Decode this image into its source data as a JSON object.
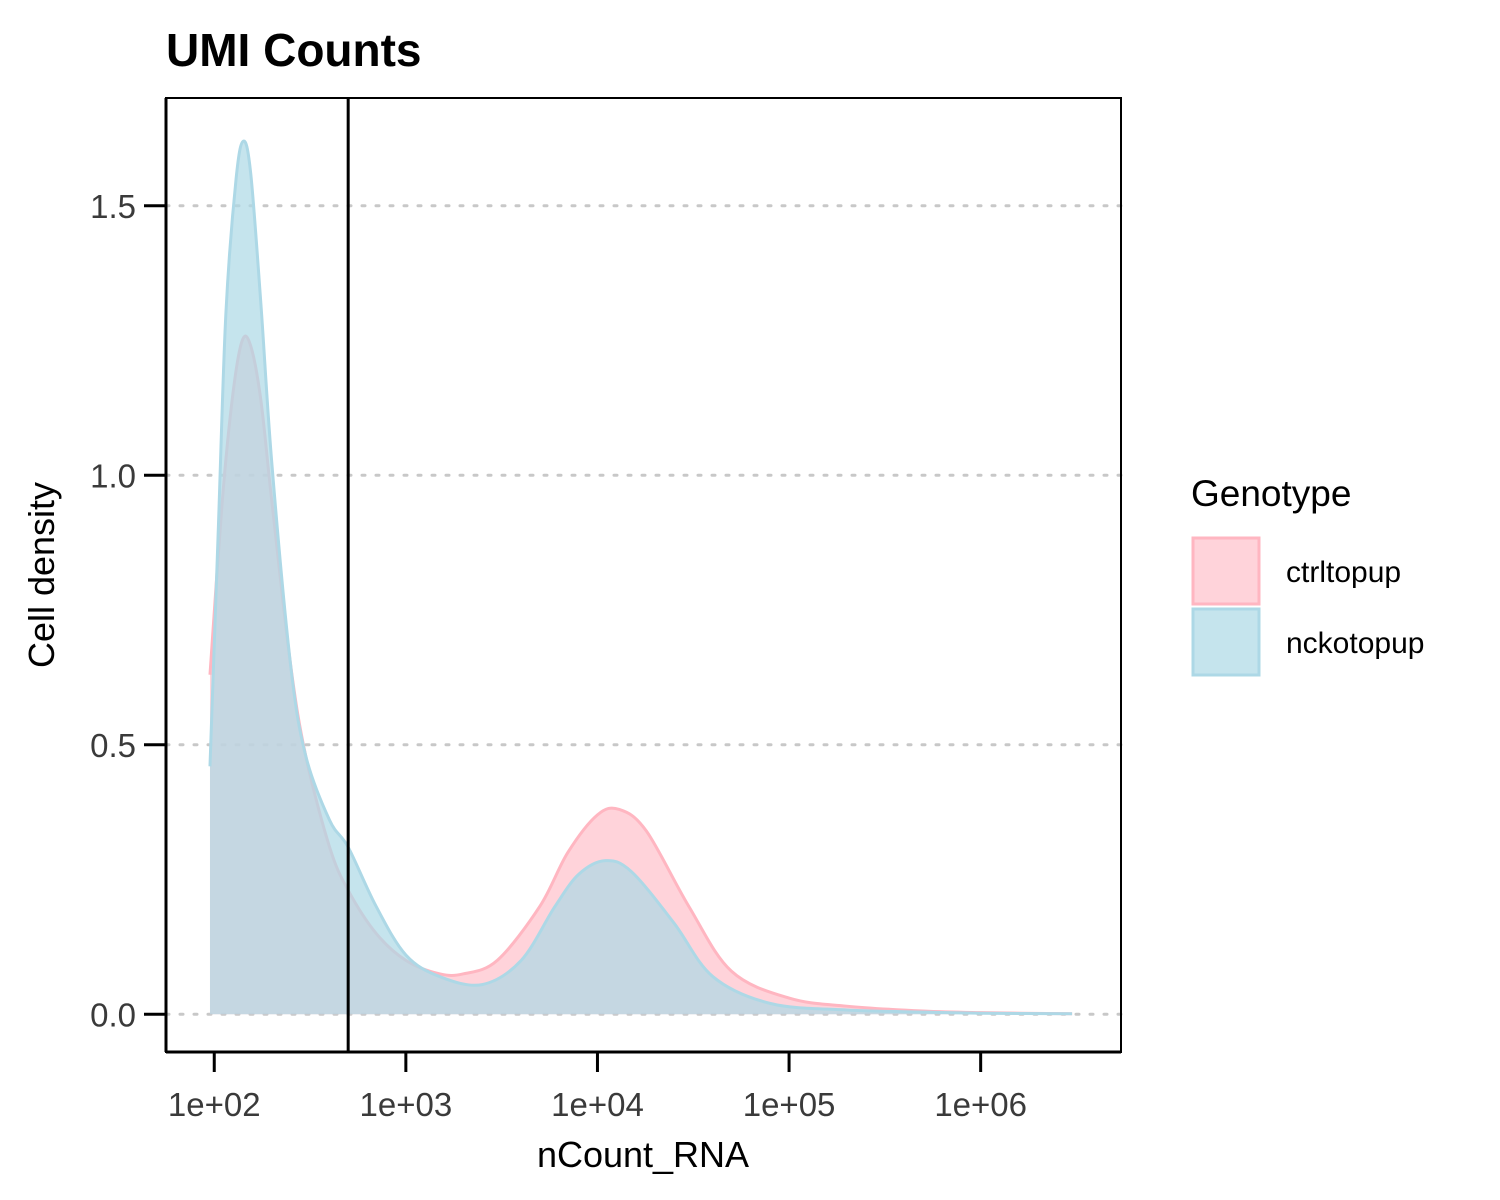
{
  "chart_data": {
    "type": "area",
    "title": "UMI Counts",
    "xlabel": "nCount_RNA",
    "ylabel": "Cell density",
    "x_scale": "log10",
    "xlim": [
      56,
      5400000
    ],
    "ylim": [
      -0.07,
      1.7
    ],
    "x_ticks": [
      100,
      1000,
      10000,
      100000,
      1000000
    ],
    "x_tick_labels": [
      "1e+02",
      "1e+03",
      "1e+04",
      "1e+05",
      "1e+06"
    ],
    "y_ticks": [
      0.0,
      0.5,
      1.0,
      1.5
    ],
    "y_tick_labels": [
      "0.0",
      "0.5",
      "1.0",
      "1.5"
    ],
    "grid": "horizontal-dotted",
    "legend": {
      "title": "Genotype",
      "position": "right"
    },
    "vline_x": 500,
    "series": [
      {
        "name": "ctrltopup",
        "fill": "#ffc0cb",
        "line": "#ffb6c1",
        "points": [
          [
            95,
            0.63
          ],
          [
            110,
            0.95
          ],
          [
            125,
            1.15
          ],
          [
            140,
            1.25
          ],
          [
            155,
            1.24
          ],
          [
            175,
            1.14
          ],
          [
            200,
            0.95
          ],
          [
            250,
            0.65
          ],
          [
            300,
            0.48
          ],
          [
            400,
            0.31
          ],
          [
            500,
            0.23
          ],
          [
            700,
            0.15
          ],
          [
            1000,
            0.1
          ],
          [
            1500,
            0.075
          ],
          [
            2000,
            0.075
          ],
          [
            3000,
            0.1
          ],
          [
            5000,
            0.2
          ],
          [
            7000,
            0.3
          ],
          [
            10000,
            0.37
          ],
          [
            13000,
            0.38
          ],
          [
            18000,
            0.34
          ],
          [
            30000,
            0.2
          ],
          [
            50000,
            0.08
          ],
          [
            100000,
            0.03
          ],
          [
            200000,
            0.015
          ],
          [
            500000,
            0.006
          ],
          [
            1000000,
            0.003
          ],
          [
            3000000,
            0.001
          ]
        ]
      },
      {
        "name": "nckotopup",
        "fill": "#add8e6",
        "line": "#add8e6",
        "points": [
          [
            95,
            0.46
          ],
          [
            105,
            0.9
          ],
          [
            115,
            1.3
          ],
          [
            130,
            1.55
          ],
          [
            142,
            1.62
          ],
          [
            155,
            1.56
          ],
          [
            175,
            1.32
          ],
          [
            200,
            1.02
          ],
          [
            250,
            0.65
          ],
          [
            300,
            0.48
          ],
          [
            400,
            0.36
          ],
          [
            500,
            0.31
          ],
          [
            700,
            0.2
          ],
          [
            1000,
            0.11
          ],
          [
            1500,
            0.07
          ],
          [
            2500,
            0.055
          ],
          [
            4000,
            0.1
          ],
          [
            6000,
            0.2
          ],
          [
            8000,
            0.26
          ],
          [
            11000,
            0.285
          ],
          [
            15000,
            0.265
          ],
          [
            25000,
            0.17
          ],
          [
            40000,
            0.07
          ],
          [
            80000,
            0.02
          ],
          [
            200000,
            0.008
          ],
          [
            500000,
            0.004
          ],
          [
            1000000,
            0.002
          ],
          [
            3000000,
            0.001
          ]
        ]
      }
    ]
  }
}
